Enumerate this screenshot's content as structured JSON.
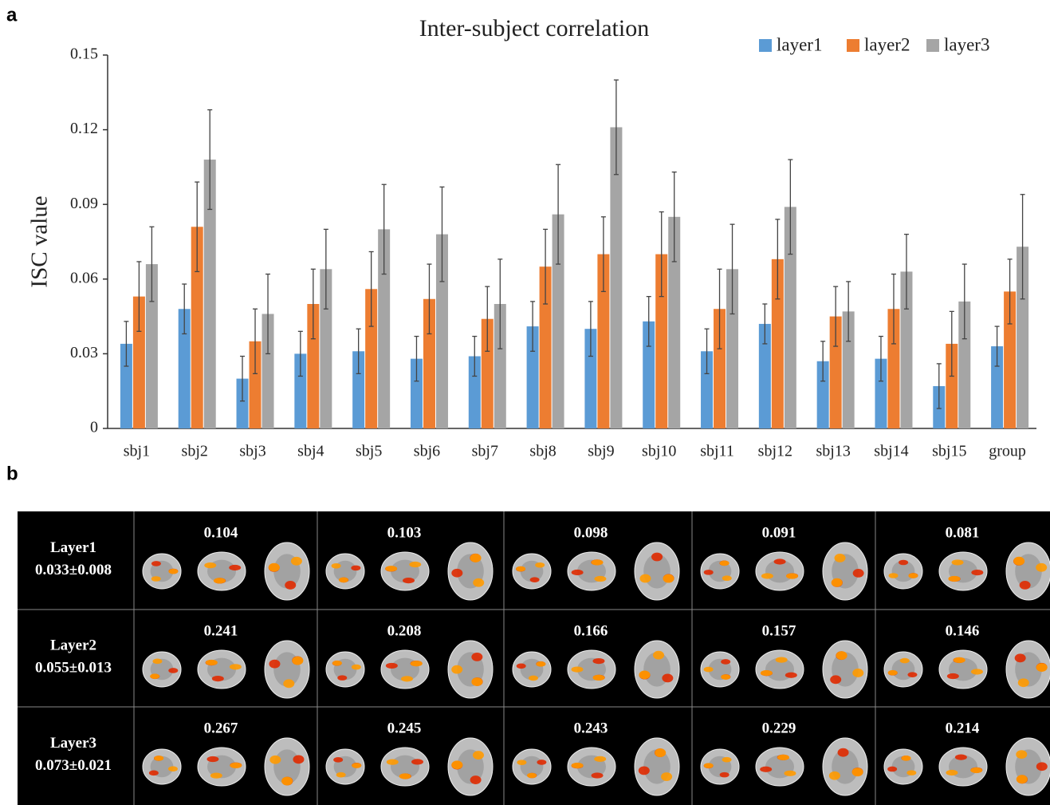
{
  "panel_labels": [
    "a",
    "b"
  ],
  "chart_data": {
    "type": "bar",
    "title": "Inter-subject correlation",
    "ylabel": "ISC value",
    "categories": [
      "sbj1",
      "sbj2",
      "sbj3",
      "sbj4",
      "sbj5",
      "sbj6",
      "sbj7",
      "sbj8",
      "sbj9",
      "sbj10",
      "sbj11",
      "sbj12",
      "sbj13",
      "sbj14",
      "sbj15",
      "group"
    ],
    "series": [
      {
        "name": "layer1",
        "color": "#5b9bd5",
        "values": [
          0.034,
          0.048,
          0.02,
          0.03,
          0.031,
          0.028,
          0.029,
          0.041,
          0.04,
          0.043,
          0.031,
          0.042,
          0.027,
          0.028,
          0.017,
          0.033
        ],
        "errors": [
          0.009,
          0.01,
          0.009,
          0.009,
          0.009,
          0.009,
          0.008,
          0.01,
          0.011,
          0.01,
          0.009,
          0.008,
          0.008,
          0.009,
          0.009,
          0.008
        ]
      },
      {
        "name": "layer2",
        "color": "#ed7d31",
        "values": [
          0.053,
          0.081,
          0.035,
          0.05,
          0.056,
          0.052,
          0.044,
          0.065,
          0.07,
          0.07,
          0.048,
          0.068,
          0.045,
          0.048,
          0.034,
          0.055
        ],
        "errors": [
          0.014,
          0.018,
          0.013,
          0.014,
          0.015,
          0.014,
          0.013,
          0.015,
          0.015,
          0.017,
          0.016,
          0.016,
          0.012,
          0.014,
          0.013,
          0.013
        ]
      },
      {
        "name": "layer3",
        "color": "#a5a5a5",
        "values": [
          0.066,
          0.108,
          0.046,
          0.064,
          0.08,
          0.078,
          0.05,
          0.086,
          0.121,
          0.085,
          0.064,
          0.089,
          0.047,
          0.063,
          0.051,
          0.073
        ],
        "errors": [
          0.015,
          0.02,
          0.016,
          0.016,
          0.018,
          0.019,
          0.018,
          0.02,
          0.019,
          0.018,
          0.018,
          0.019,
          0.012,
          0.015,
          0.015,
          0.021
        ]
      }
    ],
    "ylim": [
      0,
      0.15
    ],
    "yticks": [
      0,
      0.03,
      0.06,
      0.09,
      0.12,
      0.15
    ],
    "legend": "top-right"
  },
  "table": {
    "rows": [
      {
        "label": "Layer1",
        "stat": "0.033±0.008",
        "cells": [
          0.104,
          0.103,
          0.098,
          0.091,
          0.081
        ]
      },
      {
        "label": "Layer2",
        "stat": "0.055±0.013",
        "cells": [
          0.241,
          0.208,
          0.166,
          0.157,
          0.146
        ]
      },
      {
        "label": "Layer3",
        "stat": "0.073±0.021",
        "cells": [
          0.267,
          0.245,
          0.243,
          0.229,
          0.214
        ]
      }
    ]
  }
}
